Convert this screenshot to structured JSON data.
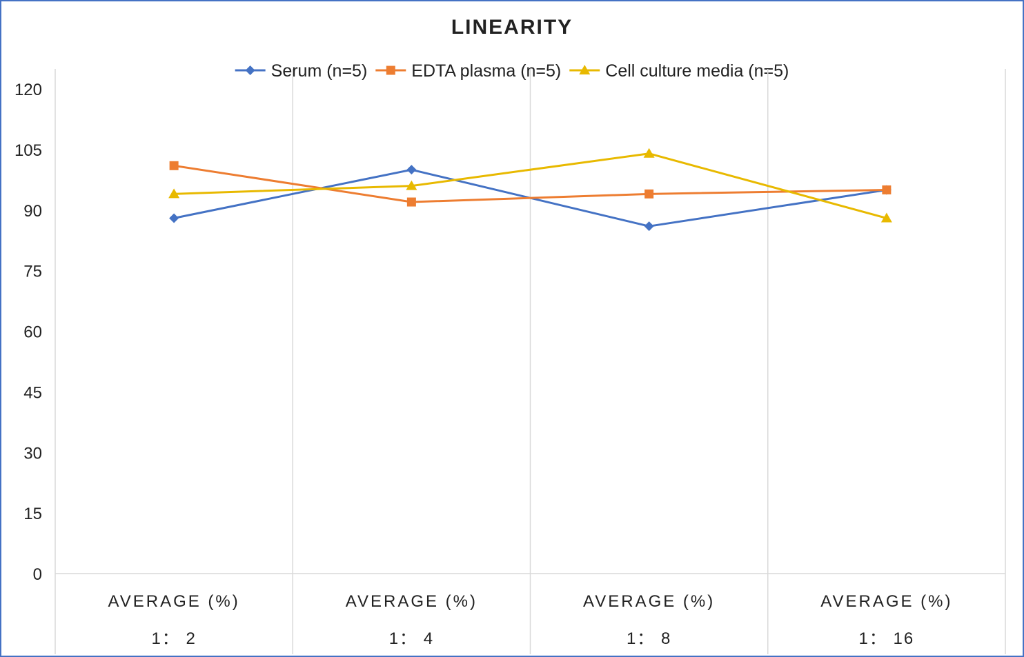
{
  "chart_data": {
    "type": "line",
    "title": "LINEARITY",
    "xlabel": "",
    "ylabel": "",
    "ylim": [
      0,
      120
    ],
    "yticks": [
      0,
      15,
      30,
      45,
      60,
      75,
      90,
      105,
      120
    ],
    "grid": "vertical category separators",
    "legend_position": "top",
    "categories": [
      {
        "label": "AVERAGE (%)",
        "sub": "1： 2"
      },
      {
        "label": "AVERAGE (%)",
        "sub": "1： 4"
      },
      {
        "label": "AVERAGE (%)",
        "sub": "1： 8"
      },
      {
        "label": "AVERAGE (%)",
        "sub": "1： 16"
      }
    ],
    "series": [
      {
        "name": "Serum (n=5)",
        "color": "#4472c4",
        "marker": "diamond",
        "values": [
          88,
          100,
          86,
          95
        ]
      },
      {
        "name": "EDTA plasma (n=5)",
        "color": "#ed7d31",
        "marker": "square",
        "values": [
          101,
          92,
          94,
          95
        ]
      },
      {
        "name": "Cell culture media (n=5)",
        "color": "#e8b900",
        "marker": "triangle",
        "values": [
          94,
          96,
          104,
          88
        ]
      }
    ]
  }
}
